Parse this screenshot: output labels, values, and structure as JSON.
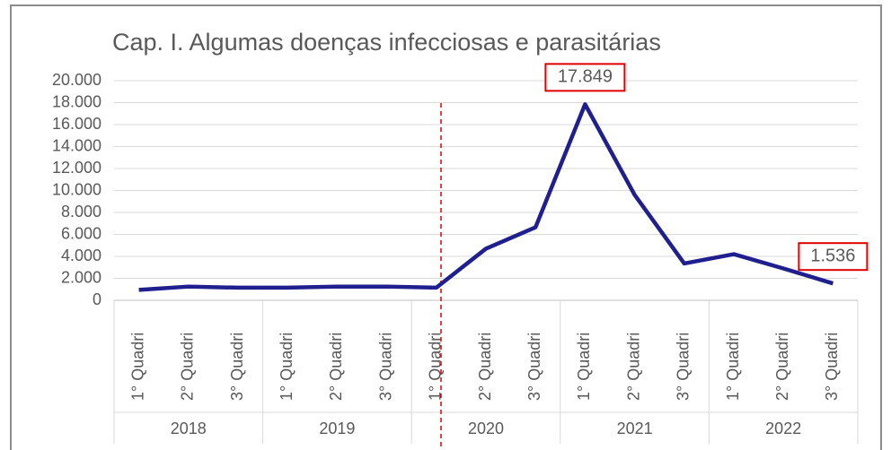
{
  "chart_data": {
    "type": "line",
    "title": "Cap. I.   Algumas doenças infecciosas e parasitárias",
    "categories": [
      "1° Quadri",
      "2° Quadri",
      "3° Quadri",
      "1° Quadri",
      "2° Quadri",
      "3° Quadri",
      "1° Quadri",
      "2° Quadri",
      "3° Quadri",
      "1° Quadri",
      "2° Quadri",
      "3° Quadri",
      "1° Quadri",
      "2° Quadri",
      "3° Quadri"
    ],
    "category_groups": [
      "2018",
      "2019",
      "2020",
      "2021",
      "2022"
    ],
    "series": [
      {
        "name": "Algumas doenças infecciosas e parasitárias",
        "color": "#1f1f8f",
        "values": [
          950,
          1250,
          1150,
          1150,
          1250,
          1250,
          1150,
          4700,
          6650,
          17849,
          9600,
          3350,
          4200,
          2900,
          1536
        ],
        "value_labels": [
          null,
          null,
          null,
          null,
          null,
          null,
          null,
          null,
          null,
          "17.849",
          null,
          null,
          null,
          null,
          "1.536"
        ]
      }
    ],
    "ylim": [
      0,
      20000
    ],
    "yticks": [
      0,
      {
        "value": 2000,
        "label": "2.000"
      },
      {
        "value": 4000,
        "label": "4.000"
      },
      {
        "value": 6000,
        "label": "6.000"
      },
      {
        "value": 8000,
        "label": "8.000"
      },
      {
        "value": 10000,
        "label": "10.000"
      },
      {
        "value": 12000,
        "label": "12.000"
      },
      {
        "value": 14000,
        "label": "14.000"
      },
      {
        "value": 16000,
        "label": "16.000"
      },
      {
        "value": 18000,
        "label": "18.000"
      },
      {
        "value": 20000,
        "label": "20.000"
      }
    ],
    "grid": true
  }
}
